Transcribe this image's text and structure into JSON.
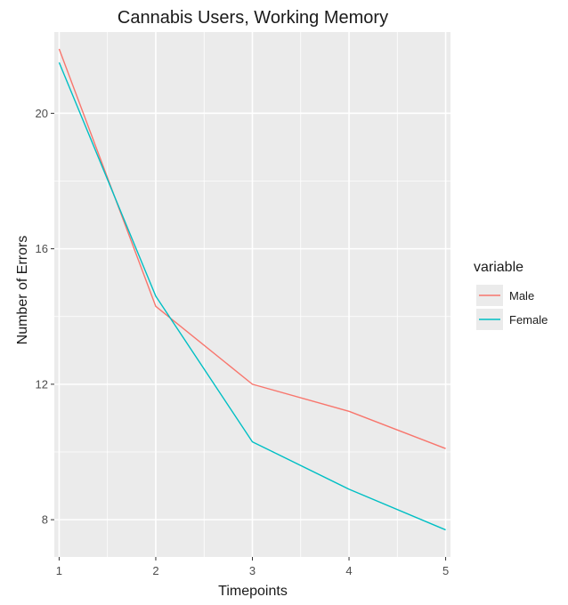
{
  "chart_data": {
    "type": "line",
    "title": "Cannabis Users, Working Memory",
    "xlabel": "Timepoints",
    "ylabel": "Number of Errors",
    "x": [
      1,
      2,
      3,
      4,
      5
    ],
    "xlim": [
      0.95,
      5.05
    ],
    "ylim": [
      6.9,
      22.4
    ],
    "xticks": [
      1,
      2,
      3,
      4,
      5
    ],
    "yticks": [
      8,
      12,
      16,
      20
    ],
    "grid": true,
    "panel_background": "#ebebeb",
    "grid_color": "#ffffff",
    "legend_position": "right",
    "legend": {
      "title": "variable"
    },
    "series": [
      {
        "name": "Male",
        "color": "#f8766d",
        "values": [
          21.9,
          14.3,
          12.0,
          11.2,
          10.1
        ]
      },
      {
        "name": "Female",
        "color": "#00bfc4",
        "values": [
          21.5,
          14.6,
          10.3,
          8.9,
          7.7
        ]
      }
    ]
  }
}
